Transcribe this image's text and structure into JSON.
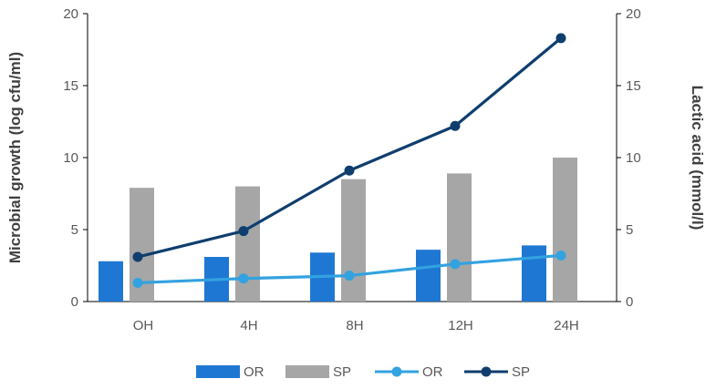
{
  "chart_data": {
    "type": "bar+line",
    "categories": [
      "OH",
      "4H",
      "8H",
      "12H",
      "24H"
    ],
    "left_axis": {
      "label": "Microbial growth (log cfu/ml)",
      "range": [
        0,
        20
      ],
      "ticks": [
        "0",
        "5",
        "10",
        "15",
        "20"
      ]
    },
    "right_axis": {
      "label": "Lactic acid (mmol/l)",
      "range": [
        0,
        20
      ],
      "ticks": [
        "0",
        "5",
        "10",
        "15",
        "20"
      ]
    },
    "bar_series": [
      {
        "name": "OR",
        "values": [
          2.8,
          3.1,
          3.4,
          3.6,
          3.9
        ],
        "color": "#1f77d4"
      },
      {
        "name": "SP",
        "values": [
          7.9,
          8.0,
          8.5,
          8.9,
          10.0
        ],
        "color": "#a6a6a6"
      }
    ],
    "line_series": [
      {
        "name": "OR",
        "values": [
          1.3,
          1.6,
          1.8,
          2.6,
          3.2
        ],
        "color": "#33a2e0"
      },
      {
        "name": "SP",
        "values": [
          3.1,
          4.9,
          9.1,
          12.2,
          18.3
        ],
        "color": "#0f3e6e"
      }
    ],
    "legend_position": "bottom",
    "grid": false
  }
}
